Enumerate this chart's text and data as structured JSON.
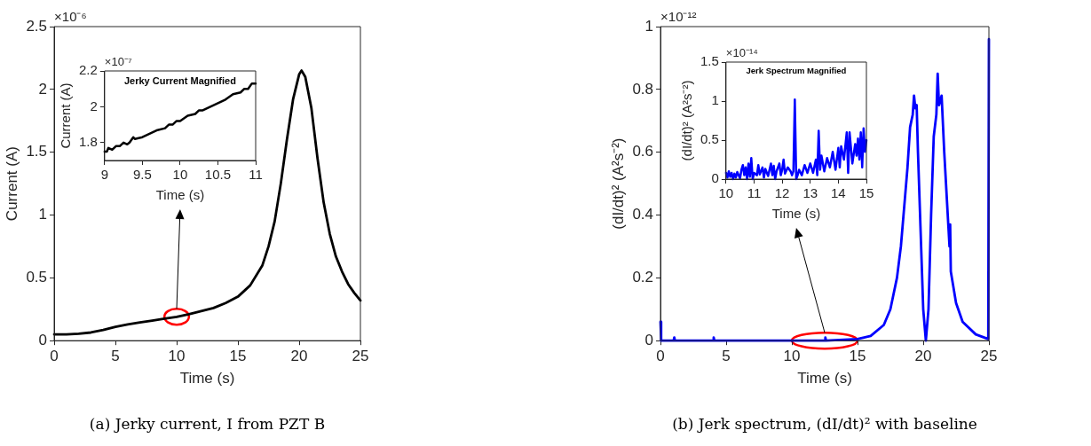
{
  "chart_data": [
    {
      "type": "line",
      "xlabel": "Time (s)",
      "ylabel": "Current (A)",
      "xlim": [
        0,
        25
      ],
      "xticks": [
        0,
        5,
        10,
        15,
        20,
        25
      ],
      "ylim": [
        0,
        2.5
      ],
      "yticks": [
        0,
        0.5,
        1,
        1.5,
        2,
        2.5
      ],
      "annotations": [
        "×10⁻⁶",
        "(a) Jerky current, I from PZT B"
      ],
      "series": [
        {
          "color": "#000000",
          "x": [
            0,
            1,
            2,
            3,
            4,
            5,
            6,
            7,
            8,
            9,
            10,
            11,
            12,
            13,
            14,
            15,
            16,
            17,
            17.5,
            18,
            18.5,
            19,
            19.5,
            20,
            20.2,
            20.5,
            21,
            21.5,
            22,
            22.5,
            23,
            23.5,
            24,
            24.5,
            25
          ],
          "values": [
            0.05,
            0.05,
            0.055,
            0.065,
            0.085,
            0.11,
            0.13,
            0.145,
            0.16,
            0.175,
            0.19,
            0.21,
            0.235,
            0.26,
            0.3,
            0.35,
            0.44,
            0.6,
            0.75,
            0.95,
            1.25,
            1.6,
            1.92,
            2.12,
            2.15,
            2.1,
            1.85,
            1.45,
            1.1,
            0.85,
            0.67,
            0.55,
            0.45,
            0.38,
            0.32
          ]
        }
      ]
    },
    {
      "type": "line",
      "title": "Jerky Current Magnified",
      "xlabel": "Time (s)",
      "ylabel": "Current (A)",
      "xlim": [
        9,
        11
      ],
      "xticks": [
        9,
        9.5,
        10,
        10.5,
        11
      ],
      "ylim": [
        1.7,
        2.2
      ],
      "yticks": [
        1.8,
        2,
        2.2
      ],
      "annotations": [
        "×10⁻⁷"
      ],
      "series": [
        {
          "color": "#000000",
          "x": [
            9,
            9.03,
            9.05,
            9.1,
            9.15,
            9.2,
            9.25,
            9.3,
            9.33,
            9.38,
            9.4,
            9.5,
            9.6,
            9.7,
            9.8,
            9.85,
            9.9,
            9.95,
            10,
            10.1,
            10.2,
            10.25,
            10.3,
            10.4,
            10.5,
            10.55,
            10.6,
            10.7,
            10.8,
            10.85,
            10.9,
            10.95,
            11
          ],
          "values": [
            1.75,
            1.75,
            1.77,
            1.76,
            1.78,
            1.78,
            1.8,
            1.79,
            1.8,
            1.83,
            1.82,
            1.83,
            1.85,
            1.87,
            1.88,
            1.9,
            1.9,
            1.92,
            1.92,
            1.95,
            1.96,
            1.98,
            1.98,
            2.0,
            2.02,
            2.03,
            2.04,
            2.07,
            2.08,
            2.1,
            2.1,
            2.13,
            2.13
          ]
        }
      ]
    },
    {
      "type": "line",
      "xlabel": "Time (s)",
      "ylabel": "(dI/dt)² (A²s⁻²)",
      "xlim": [
        0,
        25
      ],
      "xticks": [
        0,
        5,
        10,
        15,
        20,
        25
      ],
      "ylim": [
        0,
        1
      ],
      "yticks": [
        0,
        0.2,
        0.4,
        0.6,
        0.8,
        1
      ],
      "annotations": [
        "×10⁻¹²",
        "(b) Jerk spectrum, (dI/dt)² with baseline"
      ],
      "series": [
        {
          "color": "#0000ff",
          "x": [
            0,
            0.05,
            1,
            1.05,
            1.1,
            4,
            4.05,
            4.1,
            10,
            12.5,
            12.55,
            12.6,
            15,
            16,
            17,
            17.5,
            18,
            18.3,
            18.6,
            18.8,
            19,
            19.2,
            19.3,
            19.4,
            19.5,
            19.6,
            19.8,
            20,
            20.2,
            20.4,
            20.6,
            20.8,
            21,
            21.1,
            21.2,
            21.4,
            21.6,
            21.8,
            22,
            22.05,
            22.1,
            22.5,
            23,
            24,
            24.95,
            25
          ],
          "values": [
            0.06,
            0,
            0,
            0.01,
            0,
            0,
            0.01,
            0,
            0,
            0,
            0.01,
            0,
            0.005,
            0.015,
            0.05,
            0.1,
            0.2,
            0.3,
            0.45,
            0.55,
            0.68,
            0.72,
            0.78,
            0.74,
            0.75,
            0.6,
            0.35,
            0.1,
            0,
            0.1,
            0.4,
            0.65,
            0.72,
            0.85,
            0.75,
            0.78,
            0.6,
            0.45,
            0.3,
            0.37,
            0.22,
            0.12,
            0.06,
            0.02,
            0.005,
            0.96
          ]
        }
      ]
    },
    {
      "type": "line",
      "title": "Jerk Spectrum Magnified",
      "xlabel": "Time (s)",
      "ylabel": "(dI/dt)² (A²s⁻²)",
      "xlim": [
        10,
        15
      ],
      "xticks": [
        10,
        11,
        12,
        13,
        14,
        15
      ],
      "ylim": [
        0,
        1.5
      ],
      "yticks": [
        0,
        0.5,
        1,
        1.5
      ],
      "annotations": [
        "×10⁻¹⁴"
      ],
      "series": [
        {
          "color": "#0000ff",
          "x": [
            10,
            10.05,
            10.1,
            10.15,
            10.2,
            10.25,
            10.3,
            10.35,
            10.4,
            10.5,
            10.55,
            10.6,
            10.65,
            10.7,
            10.75,
            10.8,
            10.85,
            10.9,
            10.95,
            11,
            11.1,
            11.15,
            11.2,
            11.3,
            11.35,
            11.4,
            11.5,
            11.6,
            11.65,
            11.7,
            11.75,
            11.8,
            11.9,
            11.95,
            12,
            12.05,
            12.1,
            12.2,
            12.3,
            12.35,
            12.4,
            12.45,
            12.5,
            12.55,
            12.6,
            12.7,
            12.8,
            12.9,
            13,
            13.1,
            13.2,
            13.25,
            13.3,
            13.35,
            13.4,
            13.5,
            13.6,
            13.7,
            13.8,
            13.9,
            14,
            14.05,
            14.1,
            14.2,
            14.3,
            14.35,
            14.4,
            14.5,
            14.6,
            14.65,
            14.7,
            14.75,
            14.8,
            14.85,
            14.9,
            14.95,
            15
          ],
          "values": [
            0.08,
            0.02,
            0.1,
            0.03,
            0.08,
            0,
            0.07,
            0.02,
            0.09,
            0.01,
            0.12,
            0.18,
            0.05,
            0.15,
            0,
            0.2,
            0.03,
            0.27,
            0,
            0.08,
            0.05,
            0.18,
            0.06,
            0.15,
            0.02,
            0.13,
            0.04,
            0.2,
            0.05,
            0.17,
            0,
            0.1,
            0.2,
            0.05,
            0.12,
            0.25,
            0.07,
            0.15,
            0.1,
            0.05,
            0.1,
            1.02,
            0,
            0.05,
            0.12,
            0.05,
            0.18,
            0.08,
            0.2,
            0.08,
            0.25,
            0.05,
            0.62,
            0.12,
            0.3,
            0.1,
            0.27,
            0.15,
            0.35,
            0.12,
            0.4,
            0.15,
            0.42,
            0.25,
            0.6,
            0.08,
            0.6,
            0.2,
            0.45,
            0.3,
            0.52,
            0.25,
            0.6,
            0.15,
            0.65,
            0.35,
            0.5
          ]
        }
      ]
    }
  ]
}
